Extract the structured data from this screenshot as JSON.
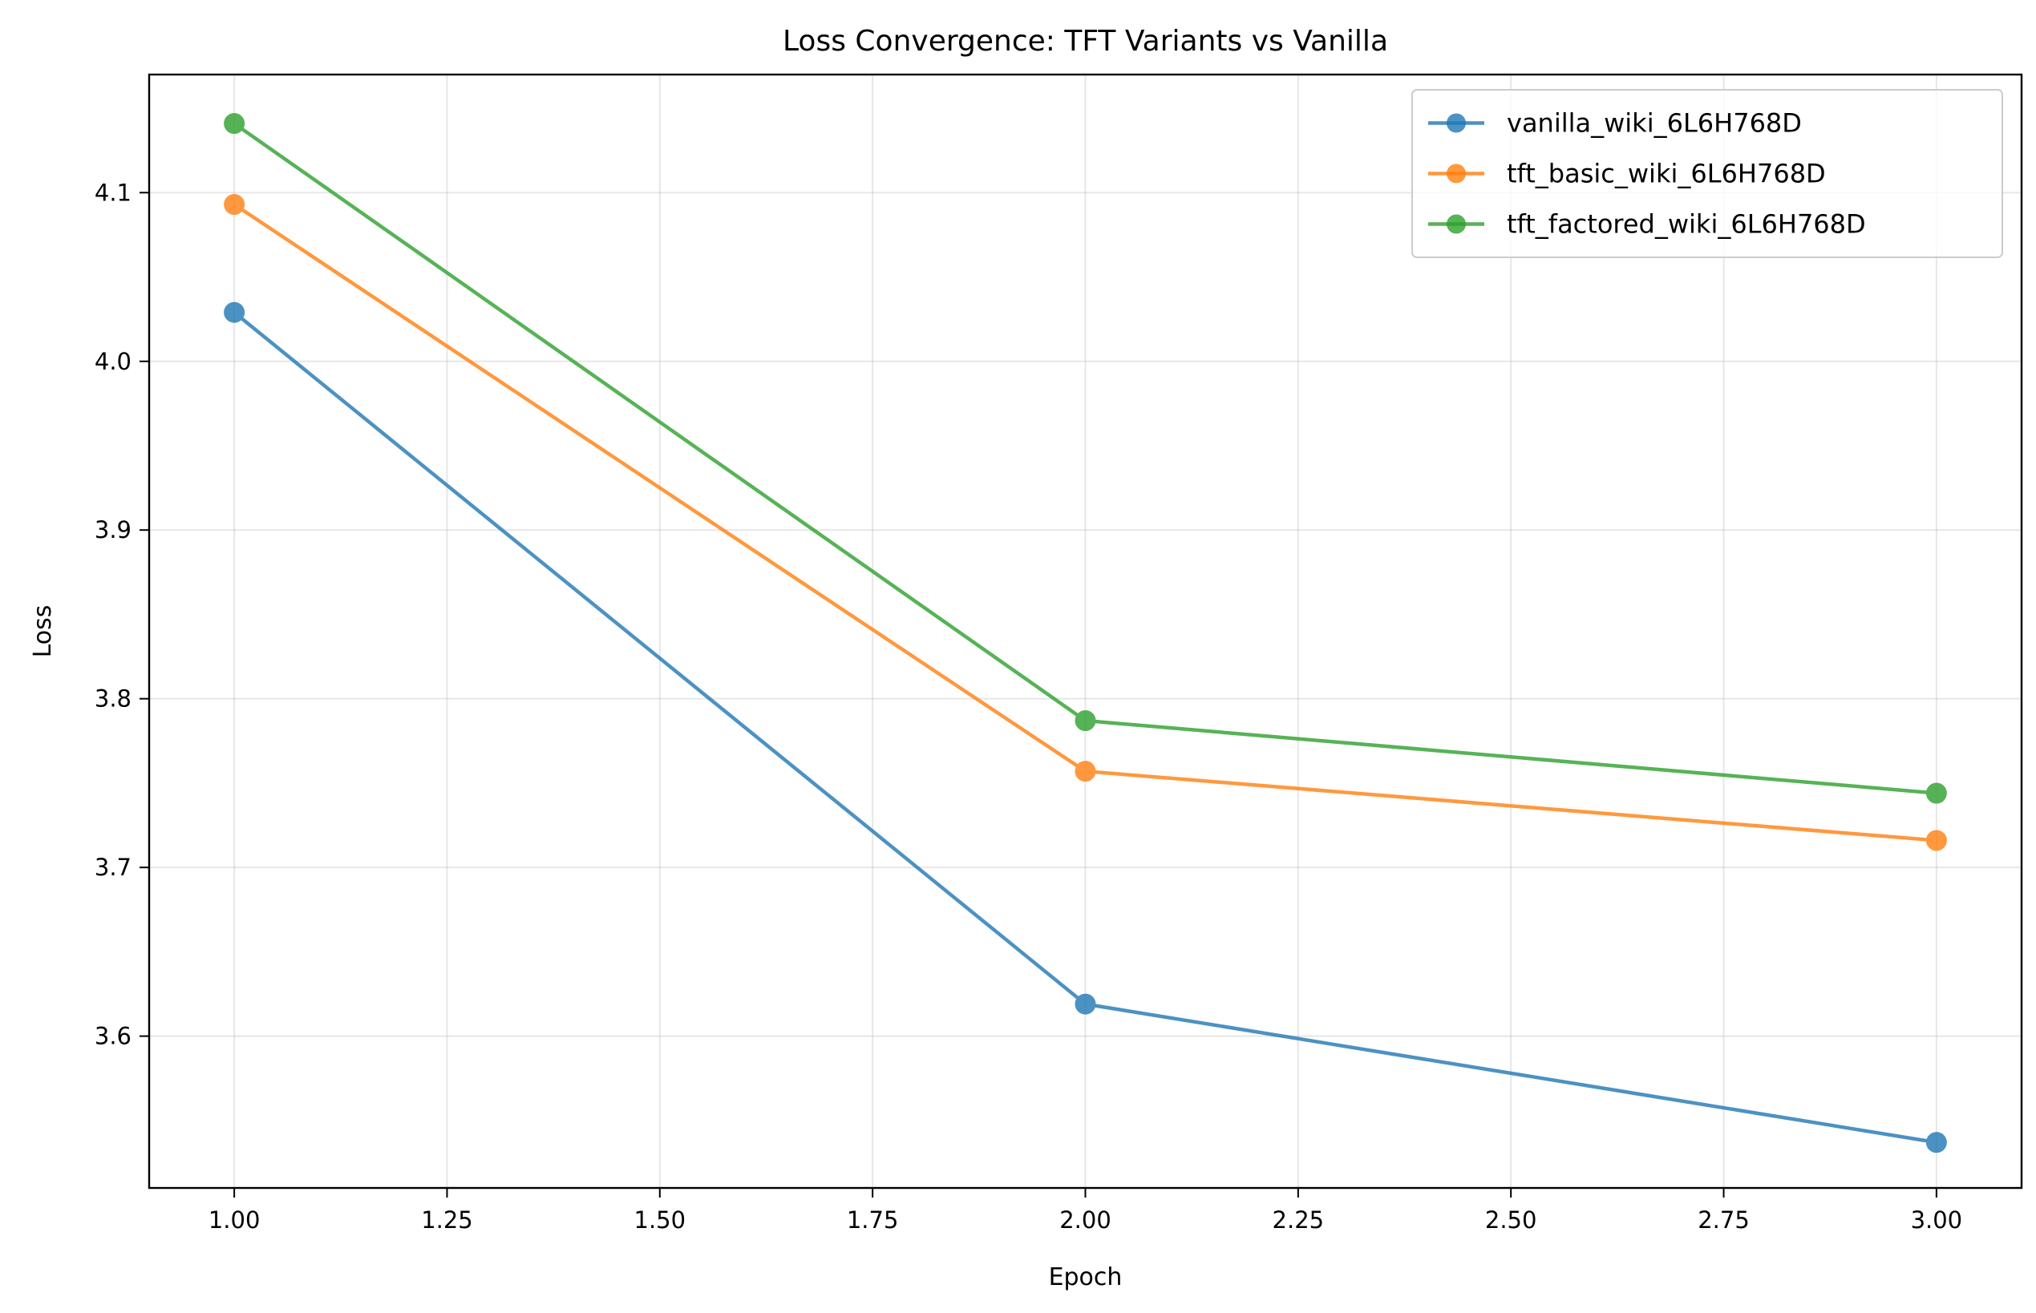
{
  "chart_data": {
    "type": "line",
    "title": "Loss Convergence: TFT Variants vs Vanilla",
    "xlabel": "Epoch",
    "ylabel": "Loss",
    "xlim": [
      0.9,
      3.1
    ],
    "ylim": [
      3.51,
      4.17
    ],
    "x_ticks": [
      1.0,
      1.25,
      1.5,
      1.75,
      2.0,
      2.25,
      2.5,
      2.75,
      3.0
    ],
    "x_tick_labels": [
      "1.00",
      "1.25",
      "1.50",
      "1.75",
      "2.00",
      "2.25",
      "2.50",
      "2.75",
      "3.00"
    ],
    "y_ticks": [
      3.6,
      3.7,
      3.8,
      3.9,
      4.0,
      4.1
    ],
    "y_tick_labels": [
      "3.6",
      "3.7",
      "3.8",
      "3.9",
      "4.0",
      "4.1"
    ],
    "grid": true,
    "legend_position": "top-right",
    "x": [
      1,
      2,
      3
    ],
    "series": [
      {
        "name": "vanilla_wiki_6L6H768D",
        "color": "#1f77b4",
        "values": [
          4.029,
          3.619,
          3.537
        ]
      },
      {
        "name": "tft_basic_wiki_6L6H768D",
        "color": "#ff7f0e",
        "values": [
          4.093,
          3.757,
          3.716
        ]
      },
      {
        "name": "tft_factored_wiki_6L6H768D",
        "color": "#2ca02c",
        "values": [
          4.141,
          3.787,
          3.744
        ]
      }
    ]
  }
}
